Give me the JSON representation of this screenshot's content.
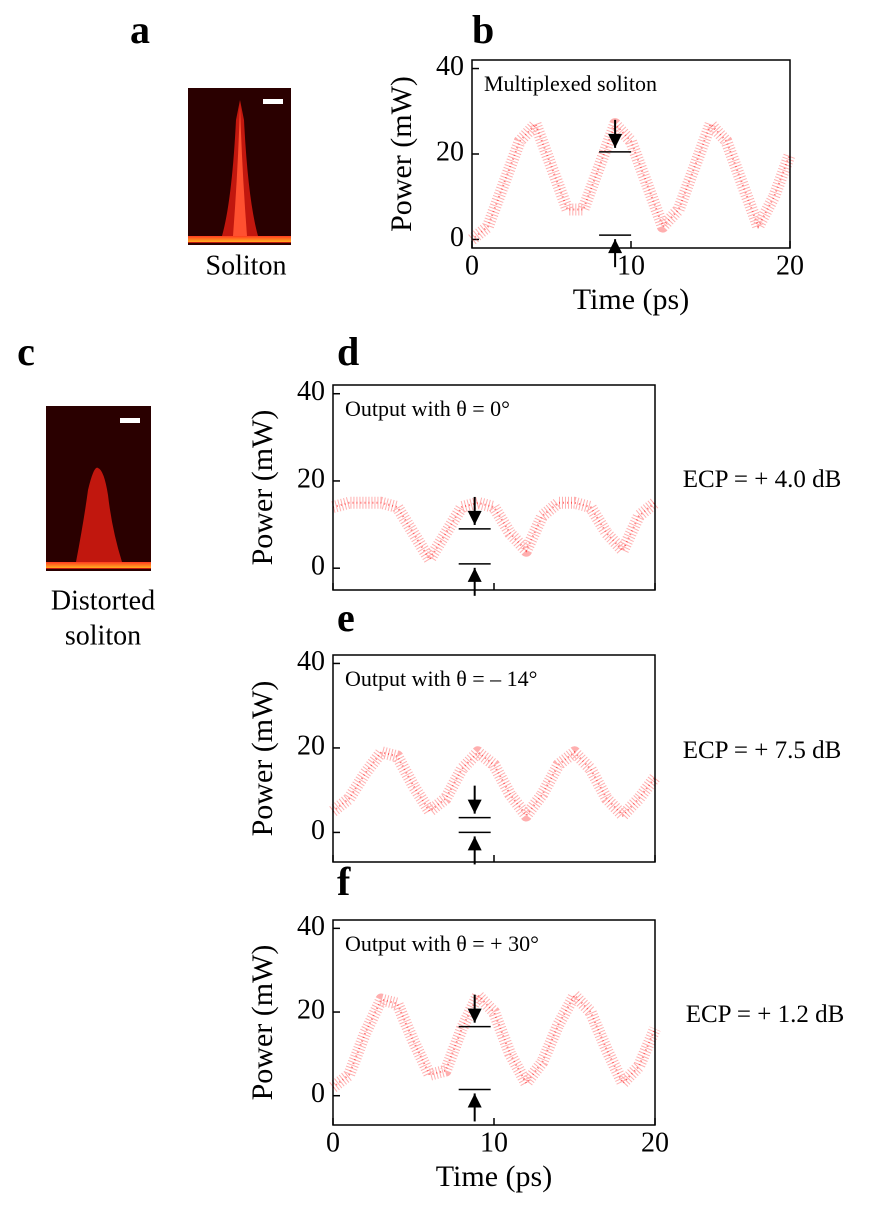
{
  "panels": {
    "a": "a",
    "c": "c",
    "image_a_caption": "Soliton",
    "image_c_caption": [
      "Distorted",
      "soliton"
    ]
  },
  "chart_data": [
    {
      "type": "line",
      "panel_label": "b",
      "annotation": "Multiplexed soliton",
      "y_label": "Power (mW)",
      "x_label": "Time (ps)",
      "color": "#ff1a1a",
      "x": [
        0,
        1,
        2,
        3,
        4,
        5,
        6,
        7,
        8,
        9,
        10,
        11,
        12,
        13,
        14,
        15,
        16,
        17,
        18,
        19,
        20
      ],
      "values": [
        0,
        3,
        13,
        23,
        27,
        17,
        7,
        7,
        17,
        27,
        23,
        13,
        3,
        7,
        17,
        27,
        23,
        13,
        3,
        10,
        20
      ],
      "markers": [
        20.5,
        1
      ],
      "marker_x": 9,
      "xlim": [
        0,
        20
      ],
      "ylim": [
        -2,
        42
      ],
      "xticks": [
        0,
        10,
        20
      ],
      "yticks": [
        0,
        20,
        40
      ],
      "xtick_labels": true
    },
    {
      "type": "line",
      "panel_label": "d",
      "annotation": "Output with θ = 0°",
      "side_label": "ECP = + 4.0 dB",
      "y_label": "Power (mW)",
      "color": "#ff1a1a",
      "x": [
        0,
        1,
        2,
        3,
        4,
        5,
        6,
        7,
        8,
        9,
        10,
        11,
        12,
        13,
        14,
        15,
        16,
        17,
        18,
        19,
        20
      ],
      "values": [
        14,
        15,
        15,
        15,
        14,
        8,
        2,
        8,
        14,
        15,
        14,
        8,
        4,
        12,
        15,
        15,
        14,
        8,
        4,
        12,
        15
      ],
      "markers": [
        9,
        1
      ],
      "marker_x": 8.8,
      "xlim": [
        0,
        20
      ],
      "ylim": [
        -5,
        42
      ],
      "xticks": [
        0,
        10,
        20
      ],
      "yticks": [
        0,
        20,
        40
      ],
      "xtick_labels": false
    },
    {
      "type": "line",
      "panel_label": "e",
      "annotation": "Output with θ = – 14°",
      "side_label": "ECP = + 7.5 dB",
      "y_label": "Power (mW)",
      "color": "#ff1a1a",
      "x": [
        0,
        1,
        2,
        3,
        4,
        5,
        6,
        7,
        8,
        9,
        10,
        11,
        12,
        13,
        14,
        15,
        16,
        17,
        18,
        19,
        20
      ],
      "values": [
        5,
        8,
        14,
        19,
        18,
        11,
        5,
        8,
        15,
        19,
        16,
        9,
        4,
        9,
        16,
        19,
        15,
        8,
        4,
        8,
        13
      ],
      "markers": [
        3.5,
        0
      ],
      "marker_x": 8.8,
      "xlim": [
        0,
        20
      ],
      "ylim": [
        -7,
        42
      ],
      "xticks": [
        0,
        10,
        20
      ],
      "yticks": [
        0,
        20,
        40
      ],
      "xtick_labels": false
    },
    {
      "type": "line",
      "panel_label": "f",
      "annotation": "Output with θ = + 30°",
      "side_label": "ECP = + 1.2 dB",
      "y_label": "Power (mW)",
      "x_label": "Time (ps)",
      "color": "#ff1a1a",
      "x": [
        0,
        1,
        2,
        3,
        4,
        5,
        6,
        7,
        8,
        9,
        10,
        11,
        12,
        13,
        14,
        15,
        16,
        17,
        18,
        19,
        20
      ],
      "values": [
        2,
        5,
        15,
        23,
        22,
        13,
        5,
        6,
        16,
        24,
        20,
        10,
        3,
        8,
        17,
        24,
        20,
        11,
        3,
        7,
        16
      ],
      "markers": [
        16.5,
        1.5
      ],
      "marker_x": 8.8,
      "xlim": [
        0,
        20
      ],
      "ylim": [
        -7,
        42
      ],
      "xticks": [
        0,
        10,
        20
      ],
      "yticks": [
        0,
        20,
        40
      ],
      "xtick_labels": true
    }
  ]
}
